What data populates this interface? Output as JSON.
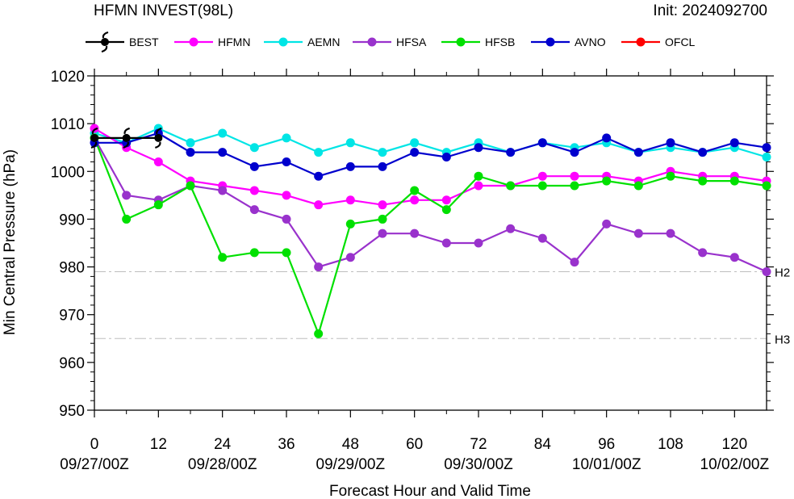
{
  "header": {
    "title": "HFMN INVEST(98L)",
    "init": "Init: 2024092700"
  },
  "chart_data": {
    "type": "line",
    "xlabel": "Forecast Hour and Valid Time",
    "ylabel": "Min Central Pressure (hPa)",
    "xlim": [
      0,
      126
    ],
    "ylim": [
      950,
      1020
    ],
    "x_ticks": [
      0,
      12,
      24,
      36,
      48,
      60,
      72,
      84,
      96,
      108,
      120
    ],
    "x_tick_labels": [
      "0",
      "12",
      "24",
      "36",
      "48",
      "60",
      "72",
      "84",
      "96",
      "108",
      "120"
    ],
    "date_labels": [
      {
        "x": 0,
        "label": "09/27/00Z"
      },
      {
        "x": 24,
        "label": "09/28/00Z"
      },
      {
        "x": 48,
        "label": "09/29/00Z"
      },
      {
        "x": 72,
        "label": "09/30/00Z"
      },
      {
        "x": 96,
        "label": "10/01/00Z"
      },
      {
        "x": 120,
        "label": "10/02/00Z"
      }
    ],
    "y_ticks": [
      950,
      960,
      970,
      980,
      990,
      1000,
      1010,
      1020
    ],
    "y_tick_labels": [
      "950",
      "960",
      "970",
      "980",
      "990",
      "1000",
      "1010",
      "1020"
    ],
    "reference_lines": [
      {
        "y": 979,
        "label": "H2"
      },
      {
        "y": 965,
        "label": "H3"
      }
    ],
    "legend_position": "top",
    "series": [
      {
        "name": "BEST",
        "color": "#000000",
        "marker": "hurricane",
        "x": [
          0,
          6,
          12
        ],
        "values": [
          1007,
          1007,
          1007
        ]
      },
      {
        "name": "HFMN",
        "color": "#ff00ff",
        "x": [
          0,
          6,
          12,
          18,
          24,
          30,
          36,
          42,
          48,
          54,
          60,
          66,
          72,
          78,
          84,
          90,
          96,
          102,
          108,
          114,
          120,
          126
        ],
        "values": [
          1009,
          1005,
          1002,
          998,
          997,
          996,
          995,
          993,
          994,
          993,
          994,
          994,
          997,
          997,
          999,
          999,
          999,
          998,
          1000,
          999,
          999,
          998
        ]
      },
      {
        "name": "AEMN",
        "color": "#00e5e5",
        "x": [
          0,
          6,
          12,
          18,
          24,
          30,
          36,
          42,
          48,
          54,
          60,
          66,
          72,
          78,
          84,
          90,
          96,
          102,
          108,
          114,
          120,
          126
        ],
        "values": [
          1008,
          1006,
          1009,
          1006,
          1008,
          1005,
          1007,
          1004,
          1006,
          1004,
          1006,
          1004,
          1006,
          1004,
          1006,
          1005,
          1006,
          1004,
          1005,
          1004,
          1005,
          1003
        ]
      },
      {
        "name": "HFSA",
        "color": "#9932cc",
        "x": [
          0,
          6,
          12,
          18,
          24,
          30,
          36,
          42,
          48,
          54,
          60,
          66,
          72,
          78,
          84,
          90,
          96,
          102,
          108,
          114,
          120,
          126
        ],
        "values": [
          1007,
          995,
          994,
          997,
          996,
          992,
          990,
          980,
          982,
          987,
          987,
          985,
          985,
          988,
          986,
          981,
          989,
          987,
          987,
          983,
          982,
          979
        ]
      },
      {
        "name": "HFSB",
        "color": "#00e000",
        "x": [
          0,
          6,
          12,
          18,
          24,
          30,
          36,
          42,
          48,
          54,
          60,
          66,
          72,
          78,
          84,
          90,
          96,
          102,
          108,
          114,
          120,
          126
        ],
        "values": [
          1007,
          990,
          993,
          997,
          982,
          983,
          983,
          966,
          989,
          990,
          996,
          992,
          999,
          997,
          997,
          997,
          998,
          997,
          999,
          998,
          998,
          997
        ]
      },
      {
        "name": "AVNO",
        "color": "#0000cd",
        "x": [
          0,
          6,
          12,
          18,
          24,
          30,
          36,
          42,
          48,
          54,
          60,
          66,
          72,
          78,
          84,
          90,
          96,
          102,
          108,
          114,
          120,
          126
        ],
        "values": [
          1006,
          1006,
          1008,
          1004,
          1004,
          1001,
          1002,
          999,
          1001,
          1001,
          1004,
          1003,
          1005,
          1004,
          1006,
          1004,
          1007,
          1004,
          1006,
          1004,
          1006,
          1005
        ]
      },
      {
        "name": "OFCL",
        "color": "#ff0000",
        "x": [],
        "values": []
      }
    ]
  }
}
